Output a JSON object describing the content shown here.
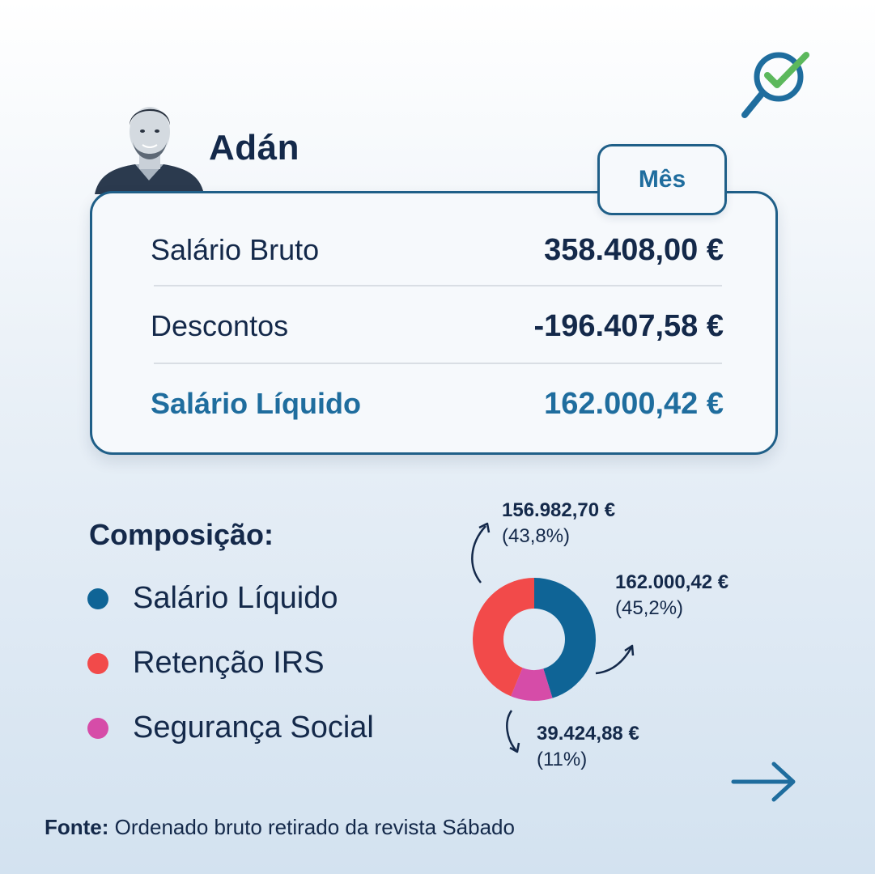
{
  "person": {
    "name": "Adán"
  },
  "period": {
    "label": "Mês"
  },
  "salary": {
    "rows": [
      {
        "label": "Salário Bruto",
        "value": "358.408,00 €"
      },
      {
        "label": "Descontos",
        "value": "-196.407,58 €"
      },
      {
        "label": "Salário Líquido",
        "value": "162.000,42 €"
      }
    ]
  },
  "composition": {
    "title": "Composição:",
    "legend": [
      {
        "label": "Salário Líquido",
        "color": "#0f6496"
      },
      {
        "label": "Retenção IRS",
        "color": "#f24a4a"
      },
      {
        "label": "Segurança Social",
        "color": "#d64ca8"
      }
    ]
  },
  "chart_data": {
    "type": "pie",
    "donut": true,
    "slices": [
      {
        "name": "Salário Líquido",
        "value": 162000.42,
        "value_label": "162.000,42 €",
        "percent_label": "(45,2%)",
        "percent": 45.2,
        "color": "#0f6496"
      },
      {
        "name": "Segurança Social",
        "value": 39424.88,
        "value_label": "39.424,88 €",
        "percent_label": "(11%)",
        "percent": 11,
        "color": "#d64ca8"
      },
      {
        "name": "Retenção IRS",
        "value": 156982.7,
        "value_label": "156.982,70 €",
        "percent_label": "(43,8%)",
        "percent": 43.8,
        "color": "#f24a4a"
      }
    ]
  },
  "source": {
    "prefix": "Fonte:",
    "text": "Ordenado bruto retirado da revista Sábado"
  },
  "icons": {
    "logo": "magnifier-check-icon",
    "next": "arrow-right-icon"
  }
}
